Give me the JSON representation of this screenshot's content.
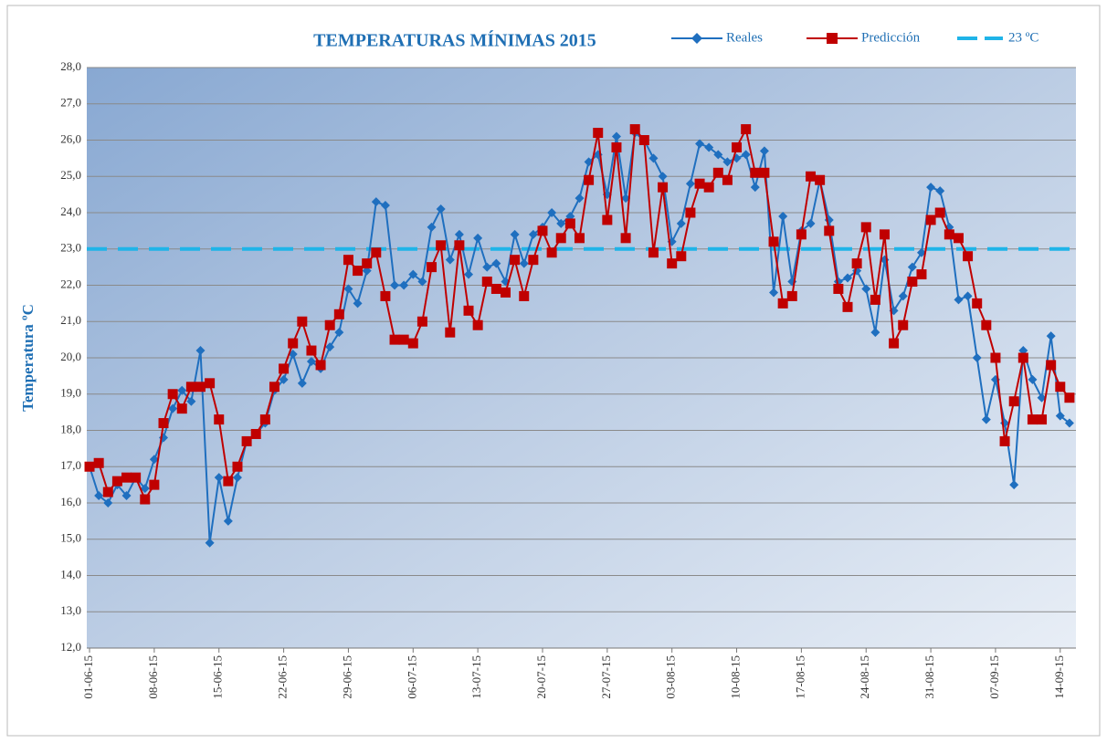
{
  "chart_data": {
    "type": "line",
    "title": "TEMPERATURAS MÍNIMAS 2015",
    "y_label": "Temperatura ºC",
    "categories": [
      "01-06-15",
      null,
      null,
      null,
      null,
      null,
      null,
      "08-06-15",
      null,
      null,
      null,
      null,
      null,
      null,
      "15-06-15",
      null,
      null,
      null,
      null,
      null,
      null,
      "22-06-15",
      null,
      null,
      null,
      null,
      null,
      null,
      "29-06-15",
      null,
      null,
      null,
      null,
      null,
      null,
      "06-07-15",
      null,
      null,
      null,
      null,
      null,
      null,
      "13-07-15",
      null,
      null,
      null,
      null,
      null,
      null,
      "20-07-15",
      null,
      null,
      null,
      null,
      null,
      null,
      "27-07-15",
      null,
      null,
      null,
      null,
      null,
      null,
      "03-08-15",
      null,
      null,
      null,
      null,
      null,
      null,
      "10-08-15",
      null,
      null,
      null,
      null,
      null,
      null,
      "17-08-15",
      null,
      null,
      null,
      null,
      null,
      null,
      "24-08-15",
      null,
      null,
      null,
      null,
      null,
      null,
      "31-08-15",
      null,
      null,
      null,
      null,
      null,
      null,
      "07-09-15",
      null,
      null,
      null,
      null,
      null,
      null,
      "14-09-15",
      null
    ],
    "series": [
      {
        "name": "Reales",
        "color": "#1F6FBF",
        "marker": "diamond",
        "values": [
          17.0,
          16.2,
          16.0,
          16.5,
          16.2,
          16.7,
          16.4,
          17.2,
          17.8,
          18.6,
          19.1,
          18.8,
          20.2,
          14.9,
          16.7,
          15.5,
          16.7,
          17.7,
          17.9,
          18.2,
          19.1,
          19.4,
          20.1,
          19.3,
          19.9,
          19.7,
          20.3,
          20.7,
          21.9,
          21.5,
          22.4,
          24.3,
          24.2,
          22.0,
          22.0,
          22.3,
          22.1,
          23.6,
          24.1,
          22.7,
          23.4,
          22.3,
          23.3,
          22.5,
          22.6,
          22.1,
          23.4,
          22.6,
          23.4,
          23.6,
          24.0,
          23.7,
          23.9,
          24.4,
          25.4,
          25.6,
          24.5,
          26.1,
          24.4,
          26.2,
          26.0,
          25.5,
          25.0,
          23.2,
          23.7,
          24.8,
          25.9,
          25.8,
          25.6,
          25.4,
          25.5,
          25.6,
          24.7,
          25.7,
          21.8,
          23.9,
          22.1,
          23.5,
          23.7,
          24.9,
          23.8,
          22.1,
          22.2,
          22.4,
          21.9,
          20.7,
          22.7,
          21.3,
          21.7,
          22.5,
          22.9,
          24.7,
          24.6,
          23.6,
          21.6,
          21.7,
          20.0,
          18.3,
          19.4,
          18.2,
          16.5,
          20.2,
          19.4,
          18.9,
          20.6,
          18.4,
          18.2
        ]
      },
      {
        "name": "Predicción",
        "color": "#C00000",
        "marker": "square",
        "values": [
          17.0,
          17.1,
          16.3,
          16.6,
          16.7,
          16.7,
          16.1,
          16.5,
          18.2,
          19.0,
          18.6,
          19.2,
          19.2,
          19.3,
          18.3,
          16.6,
          17.0,
          17.7,
          17.9,
          18.3,
          19.2,
          19.7,
          20.4,
          21.0,
          20.2,
          19.8,
          20.9,
          21.2,
          22.7,
          22.4,
          22.6,
          22.9,
          21.7,
          20.5,
          20.5,
          20.4,
          21.0,
          22.5,
          23.1,
          20.7,
          23.1,
          21.3,
          20.9,
          22.1,
          21.9,
          21.8,
          22.7,
          21.7,
          22.7,
          23.5,
          22.9,
          23.3,
          23.7,
          23.3,
          24.9,
          26.2,
          23.8,
          25.8,
          23.3,
          26.3,
          26.0,
          22.9,
          24.7,
          22.6,
          22.8,
          24.0,
          24.8,
          24.7,
          25.1,
          24.9,
          25.8,
          26.3,
          25.1,
          25.1,
          23.2,
          21.5,
          21.7,
          23.4,
          25.0,
          24.9,
          23.5,
          21.9,
          21.4,
          22.6,
          23.6,
          21.6,
          23.4,
          20.4,
          20.9,
          22.1,
          22.3,
          23.8,
          24.0,
          23.4,
          23.3,
          22.8,
          21.5,
          20.9,
          20.0,
          17.7,
          18.8,
          20.0,
          18.3,
          18.3,
          19.8,
          19.2,
          18.9
        ]
      }
    ],
    "reference_line": {
      "name": "23 ºC",
      "value": 23,
      "color": "#1FB4E8"
    },
    "ylim": [
      12,
      28
    ],
    "yticks": [
      {
        "value": 12,
        "label": "12,0"
      },
      {
        "value": 13,
        "label": "13,0"
      },
      {
        "value": 14,
        "label": "14,0"
      },
      {
        "value": 15,
        "label": "15,0"
      },
      {
        "value": 16,
        "label": "16,0"
      },
      {
        "value": 17,
        "label": "17,0"
      },
      {
        "value": 18,
        "label": "18,0"
      },
      {
        "value": 19,
        "label": "19,0"
      },
      {
        "value": 20,
        "label": "20,0"
      },
      {
        "value": 21,
        "label": "21,0"
      },
      {
        "value": 22,
        "label": "22,0"
      },
      {
        "value": 23,
        "label": "23,0"
      },
      {
        "value": 24,
        "label": "24,0"
      },
      {
        "value": 25,
        "label": "25,0"
      },
      {
        "value": 26,
        "label": "26,0"
      },
      {
        "value": 27,
        "label": "27,0"
      },
      {
        "value": 28,
        "label": "28,0"
      }
    ],
    "grid": true
  }
}
